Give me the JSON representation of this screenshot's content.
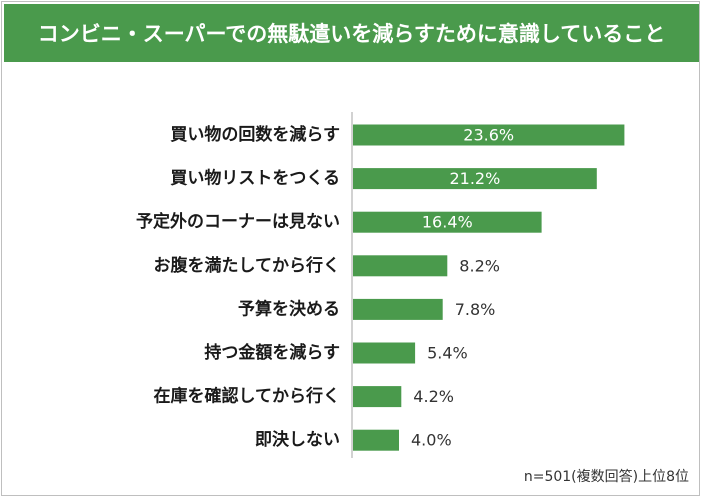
{
  "chart_data": {
    "type": "bar",
    "orientation": "horizontal",
    "title": "コンビニ・スーパーでの無駄遣いを減らすために意識していること",
    "categories": [
      "買い物の回数を減らす",
      "買い物リストをつくる",
      "予定外のコーナーは見ない",
      "お腹を満たしてから行く",
      "予算を決める",
      "持つ金額を減らす",
      "在庫を確認してから行く",
      "即決しない"
    ],
    "values": [
      23.6,
      21.2,
      16.4,
      8.2,
      7.8,
      5.4,
      4.2,
      4.0
    ],
    "value_labels": [
      "23.6%",
      "21.2%",
      "16.4%",
      "8.2%",
      "7.8%",
      "5.4%",
      "4.2%",
      "4.0%"
    ],
    "xlim": [
      0,
      24
    ],
    "grid": false,
    "legend": "none",
    "note": "n=501(複数回答)上位8位",
    "colors": {
      "title_bg": "#4a9a4c",
      "bar": "#4a9a4c",
      "axis": "#a6a6a6",
      "label_inside": "#ffffff",
      "label_outside": "#333333"
    }
  }
}
